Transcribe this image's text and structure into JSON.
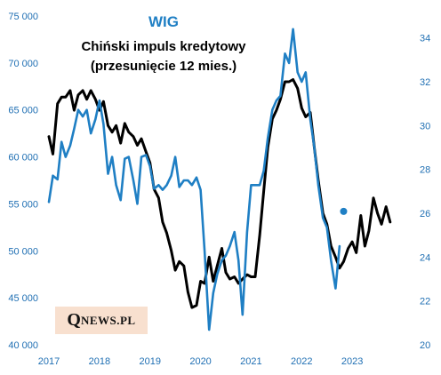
{
  "chart_data": {
    "type": "line",
    "title": "WIG",
    "subtitle_line1": "Chiński impuls kredytowy",
    "subtitle_line2": "(przesunięcie 12 mies.)",
    "x_ticks": [
      "2017",
      "2018",
      "2019",
      "2020",
      "2021",
      "2022",
      "2023"
    ],
    "xlim": [
      2017.0,
      2024.0
    ],
    "y_left": {
      "ticks": [
        "40 000",
        "45 000",
        "50 000",
        "55 000",
        "60 000",
        "65 000",
        "70 000",
        "75 000"
      ],
      "ylim": [
        40000,
        75000
      ]
    },
    "y_right": {
      "ticks": [
        "20",
        "22",
        "24",
        "26",
        "28",
        "30",
        "32",
        "34"
      ],
      "ylim": [
        20,
        35
      ]
    },
    "grid": false,
    "colors": {
      "wig": "#1f7fc4",
      "impulse": "#000000"
    },
    "series": [
      {
        "key": "wig",
        "axis": "left",
        "points": [
          [
            2017.0,
            55200
          ],
          [
            2017.08,
            58000
          ],
          [
            2017.17,
            57600
          ],
          [
            2017.25,
            61600
          ],
          [
            2017.33,
            60000
          ],
          [
            2017.42,
            61200
          ],
          [
            2017.5,
            63000
          ],
          [
            2017.58,
            65000
          ],
          [
            2017.67,
            64300
          ],
          [
            2017.75,
            65000
          ],
          [
            2017.83,
            62500
          ],
          [
            2017.92,
            64000
          ],
          [
            2018.0,
            66000
          ],
          [
            2018.08,
            63500
          ],
          [
            2018.17,
            58200
          ],
          [
            2018.25,
            60000
          ],
          [
            2018.33,
            57000
          ],
          [
            2018.42,
            55400
          ],
          [
            2018.5,
            59800
          ],
          [
            2018.58,
            60000
          ],
          [
            2018.67,
            57500
          ],
          [
            2018.75,
            55000
          ],
          [
            2018.83,
            60000
          ],
          [
            2018.92,
            60200
          ],
          [
            2019.0,
            59000
          ],
          [
            2019.08,
            56600
          ],
          [
            2019.17,
            57000
          ],
          [
            2019.25,
            56500
          ],
          [
            2019.33,
            57000
          ],
          [
            2019.42,
            58000
          ],
          [
            2019.5,
            60000
          ],
          [
            2019.58,
            56800
          ],
          [
            2019.67,
            57500
          ],
          [
            2019.75,
            57500
          ],
          [
            2019.83,
            57000
          ],
          [
            2019.92,
            57800
          ],
          [
            2020.0,
            56500
          ],
          [
            2020.08,
            50000
          ],
          [
            2020.17,
            41600
          ],
          [
            2020.25,
            45500
          ],
          [
            2020.33,
            47500
          ],
          [
            2020.42,
            49000
          ],
          [
            2020.5,
            49500
          ],
          [
            2020.58,
            50500
          ],
          [
            2020.67,
            52000
          ],
          [
            2020.75,
            49000
          ],
          [
            2020.83,
            43200
          ],
          [
            2020.92,
            52000
          ],
          [
            2021.0,
            57000
          ],
          [
            2021.08,
            57000
          ],
          [
            2021.17,
            57000
          ],
          [
            2021.25,
            58500
          ],
          [
            2021.33,
            62000
          ],
          [
            2021.42,
            65000
          ],
          [
            2021.5,
            66000
          ],
          [
            2021.58,
            66500
          ],
          [
            2021.67,
            71000
          ],
          [
            2021.75,
            70000
          ],
          [
            2021.83,
            73600
          ],
          [
            2021.92,
            69000
          ],
          [
            2022.0,
            68000
          ],
          [
            2022.08,
            69000
          ],
          [
            2022.17,
            64000
          ],
          [
            2022.25,
            61000
          ],
          [
            2022.33,
            57000
          ],
          [
            2022.42,
            53500
          ],
          [
            2022.5,
            52500
          ],
          [
            2022.58,
            49000
          ],
          [
            2022.67,
            46000
          ],
          [
            2022.75,
            50500
          ]
        ]
      },
      {
        "key": "wig_marker",
        "axis": "left",
        "marker_only": true,
        "points": [
          [
            2022.83,
            54200
          ]
        ]
      },
      {
        "key": "impulse",
        "axis": "right",
        "points": [
          [
            2017.0,
            29.5
          ],
          [
            2017.08,
            28.7
          ],
          [
            2017.17,
            31.0
          ],
          [
            2017.25,
            31.3
          ],
          [
            2017.33,
            31.3
          ],
          [
            2017.42,
            31.6
          ],
          [
            2017.5,
            30.7
          ],
          [
            2017.58,
            31.4
          ],
          [
            2017.67,
            31.6
          ],
          [
            2017.75,
            31.2
          ],
          [
            2017.83,
            31.6
          ],
          [
            2017.92,
            31.2
          ],
          [
            2018.0,
            30.7
          ],
          [
            2018.08,
            31.1
          ],
          [
            2018.17,
            30.0
          ],
          [
            2018.25,
            29.7
          ],
          [
            2018.33,
            30.0
          ],
          [
            2018.42,
            29.2
          ],
          [
            2018.5,
            30.1
          ],
          [
            2018.58,
            29.7
          ],
          [
            2018.67,
            29.5
          ],
          [
            2018.75,
            29.1
          ],
          [
            2018.83,
            29.4
          ],
          [
            2018.92,
            28.8
          ],
          [
            2019.0,
            28.3
          ],
          [
            2019.08,
            27.1
          ],
          [
            2019.17,
            26.7
          ],
          [
            2019.25,
            25.6
          ],
          [
            2019.33,
            25.1
          ],
          [
            2019.42,
            24.3
          ],
          [
            2019.5,
            23.4
          ],
          [
            2019.58,
            23.8
          ],
          [
            2019.67,
            23.6
          ],
          [
            2019.75,
            22.4
          ],
          [
            2019.83,
            21.7
          ],
          [
            2019.92,
            21.8
          ],
          [
            2020.0,
            22.9
          ],
          [
            2020.08,
            22.8
          ],
          [
            2020.17,
            24.0
          ],
          [
            2020.25,
            22.9
          ],
          [
            2020.33,
            23.6
          ],
          [
            2020.42,
            24.4
          ],
          [
            2020.5,
            23.3
          ],
          [
            2020.58,
            23.0
          ],
          [
            2020.67,
            23.1
          ],
          [
            2020.75,
            22.8
          ],
          [
            2020.83,
            23.0
          ],
          [
            2020.92,
            23.2
          ],
          [
            2021.0,
            23.1
          ],
          [
            2021.08,
            23.1
          ],
          [
            2021.17,
            25.0
          ],
          [
            2021.25,
            27.0
          ],
          [
            2021.33,
            29.0
          ],
          [
            2021.42,
            30.3
          ],
          [
            2021.5,
            30.7
          ],
          [
            2021.58,
            31.2
          ],
          [
            2021.67,
            32.0
          ],
          [
            2021.75,
            32.0
          ],
          [
            2021.83,
            32.1
          ],
          [
            2021.92,
            31.7
          ],
          [
            2022.0,
            30.8
          ],
          [
            2022.08,
            30.4
          ],
          [
            2022.17,
            30.6
          ],
          [
            2022.25,
            29.0
          ],
          [
            2022.33,
            27.5
          ],
          [
            2022.42,
            26.0
          ],
          [
            2022.5,
            25.5
          ],
          [
            2022.58,
            24.5
          ],
          [
            2022.67,
            24.0
          ],
          [
            2022.75,
            23.5
          ],
          [
            2022.83,
            23.8
          ],
          [
            2022.92,
            24.4
          ],
          [
            2023.0,
            24.7
          ],
          [
            2023.08,
            24.2
          ],
          [
            2023.17,
            25.9
          ],
          [
            2023.25,
            24.5
          ],
          [
            2023.33,
            25.2
          ],
          [
            2023.42,
            26.7
          ],
          [
            2023.5,
            26.0
          ],
          [
            2023.58,
            25.5
          ],
          [
            2023.67,
            26.3
          ],
          [
            2023.75,
            25.6
          ]
        ]
      }
    ]
  },
  "logo": {
    "q": "Q",
    "rest": "NEWS.PL"
  }
}
